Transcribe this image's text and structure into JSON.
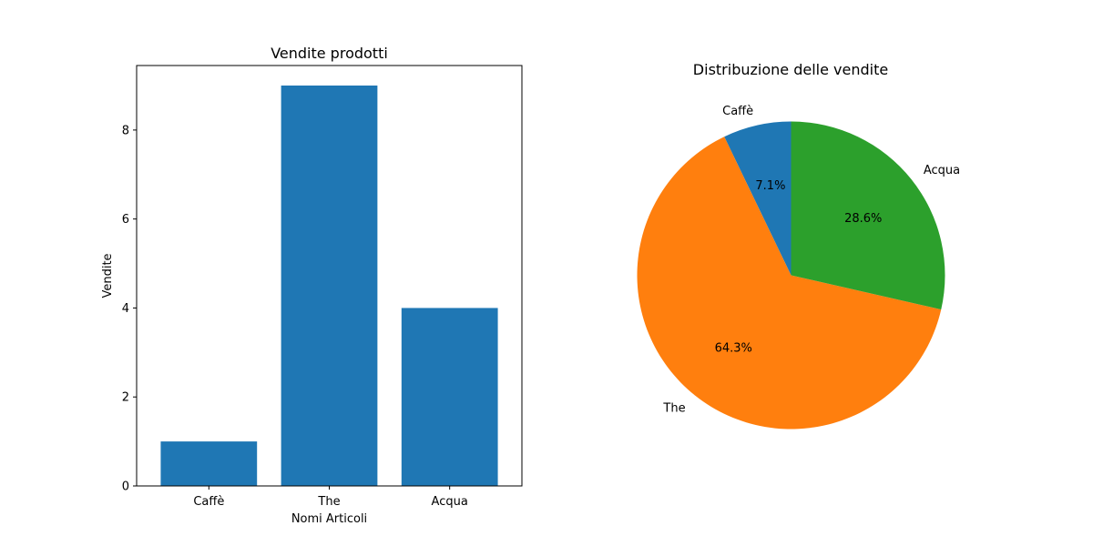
{
  "chart_data": [
    {
      "type": "bar",
      "title": "Vendite prodotti",
      "xlabel": "Nomi Articoli",
      "ylabel": "Vendite",
      "categories": [
        "Caffè",
        "The",
        "Acqua"
      ],
      "values": [
        1,
        9,
        4
      ],
      "ylim": [
        0,
        9.45
      ],
      "yticks": [
        0,
        2,
        4,
        6,
        8
      ],
      "grid": false,
      "color": "#1f77b4"
    },
    {
      "type": "pie",
      "title": "Distribuzione delle vendite",
      "labels": [
        "Caffè",
        "The",
        "Acqua"
      ],
      "values": [
        1,
        9,
        4
      ],
      "percent_labels": [
        "7.1%",
        "64.3%",
        "28.6%"
      ],
      "colors": [
        "#1f77b4",
        "#ff7f0e",
        "#2ca02c"
      ],
      "start_angle": 90
    }
  ]
}
